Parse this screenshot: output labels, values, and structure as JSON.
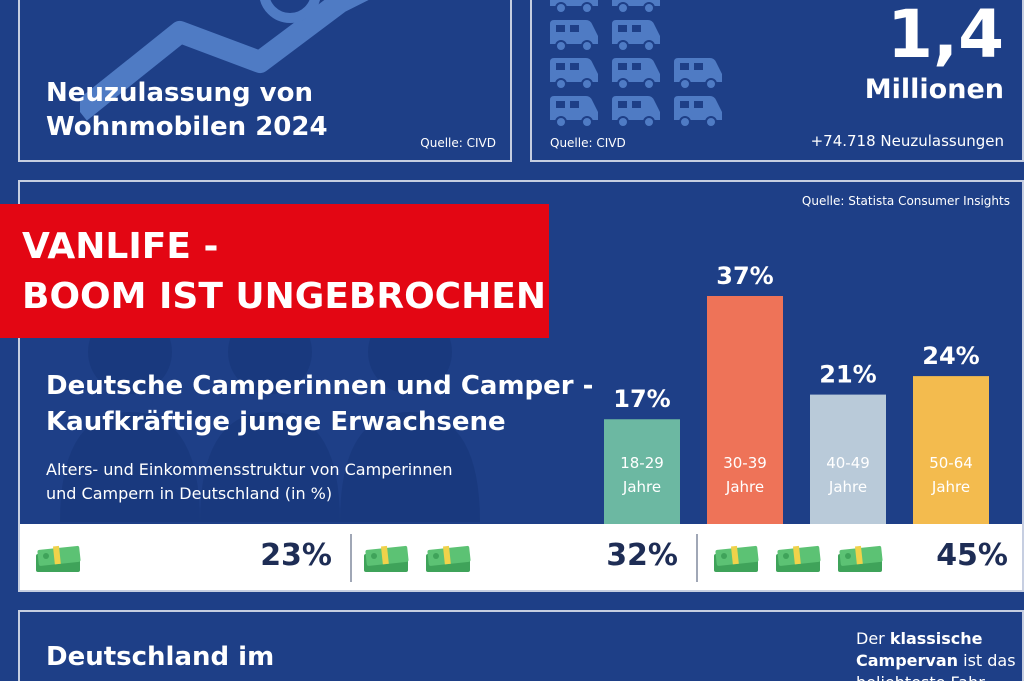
{
  "panel_registrations": {
    "title_line1": "Neuzulassung von",
    "title_line2": "Wohnmobilen 2024",
    "source": "Quelle: CIVD"
  },
  "panel_count": {
    "big_number": "1,4",
    "unit": "Millionen",
    "source": "Quelle: CIVD",
    "subtext": "+74.718 Neuzulassungen",
    "icon": "camper-van-icon"
  },
  "banner": {
    "line1": "VANLIFE -",
    "line2": "BOOM IST UNGEBROCHEN",
    "color": "#e30613"
  },
  "panel_camper": {
    "source": "Quelle: Statista Consumer Insights",
    "title_line1": "Deutsche Camperinnen und Camper -",
    "title_line2": "Kaufkräftige junge Erwachsene",
    "desc_line1": "Alters- und Einkommensstruktur von Camperinnen",
    "desc_line2": "und Campern in Deutschland (in %)",
    "income": [
      {
        "value": "23%",
        "icons": 1
      },
      {
        "value": "32%",
        "icons": 2
      },
      {
        "value": "45%",
        "icons": 3
      }
    ]
  },
  "chart_data": {
    "type": "bar",
    "categories": [
      "18-29 Jahre",
      "30-39 Jahre",
      "40-49 Jahre",
      "50-64 Jahre"
    ],
    "category_lines": [
      [
        "18-29",
        "Jahre"
      ],
      [
        "30-39",
        "Jahre"
      ],
      [
        "40-49",
        "Jahre"
      ],
      [
        "50-64",
        "Jahre"
      ]
    ],
    "values": [
      17,
      37,
      21,
      24
    ],
    "value_labels": [
      "17%",
      "37%",
      "21%",
      "24%"
    ],
    "colors": [
      "#6cb8a2",
      "#ee7358",
      "#b9cad9",
      "#f3bb4e"
    ],
    "title": "Deutsche Camperinnen und Camper - Kaufkräftige junge Erwachsene",
    "ylim": [
      0,
      37
    ]
  },
  "panel_germany": {
    "title": "Deutschland im",
    "note_line1_pre": "Der ",
    "note_line1_bold": "klassische",
    "note_line2_bold": "Campervan",
    "note_line2_post": " ist das",
    "note_line3": "beliebteste Fahr-"
  },
  "colors": {
    "background": "#1e3f87",
    "accent_red": "#e30613",
    "icon_blue": "#4f7bc4"
  }
}
